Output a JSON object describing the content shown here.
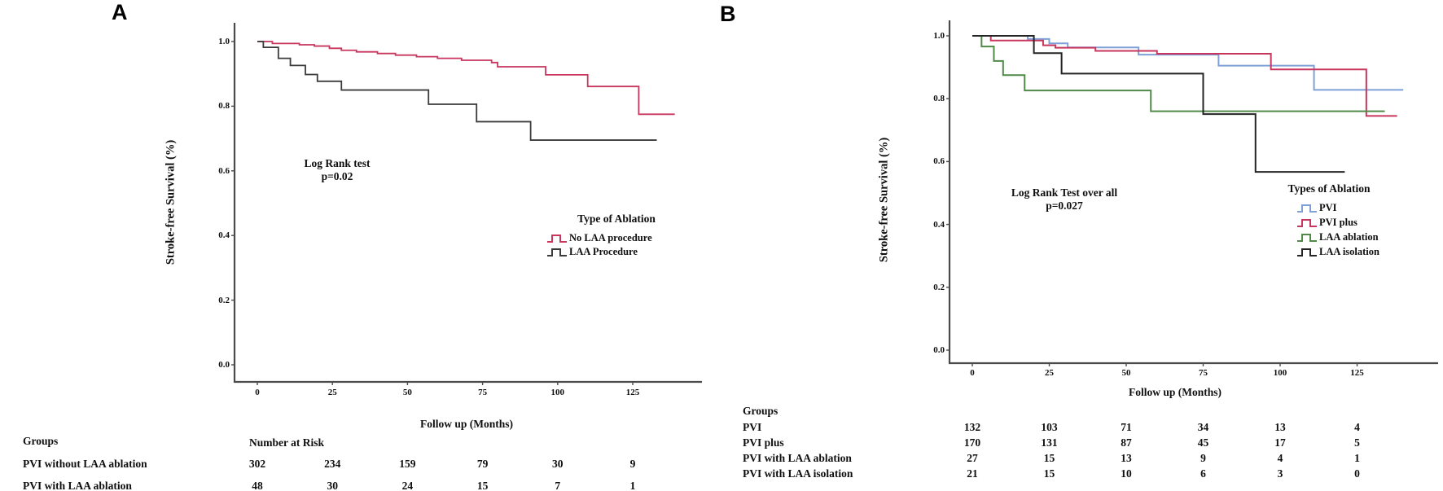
{
  "chart_data": [
    {
      "type": "line",
      "subtype": "kaplan-meier-step",
      "panel_label": "A",
      "ylabel": "Stroke-free Survival (%)",
      "xlabel": "Follow up (Months)",
      "annotation_line1": "Log Rank test",
      "annotation_line2": "p=0.02",
      "legend_title": "Type of Ablation",
      "legend_position": "inside-right",
      "grid": false,
      "xticks": [
        "0",
        "25",
        "50",
        "75",
        "100",
        "125"
      ],
      "xtick_values": [
        0,
        25,
        50,
        75,
        100,
        125
      ],
      "yticks": [
        "1.0",
        "0.8",
        "0.6",
        "0.4",
        "0.2",
        "0.0"
      ],
      "ytick_values": [
        1.0,
        0.8,
        0.6,
        0.4,
        0.2,
        0.0
      ],
      "xlim": [
        0,
        148
      ],
      "ylim": [
        0.0,
        1.05
      ],
      "series": [
        {
          "name": "No LAA procedure",
          "color": "#c8365e",
          "steps": [
            [
              0,
              1.0
            ],
            [
              5,
              0.994
            ],
            [
              14,
              0.99
            ],
            [
              19,
              0.986
            ],
            [
              24,
              0.979
            ],
            [
              28,
              0.973
            ],
            [
              33,
              0.968
            ],
            [
              40,
              0.963
            ],
            [
              46,
              0.958
            ],
            [
              53,
              0.953
            ],
            [
              60,
              0.948
            ],
            [
              68,
              0.942
            ],
            [
              78,
              0.935
            ],
            [
              80,
              0.922
            ],
            [
              96,
              0.897
            ],
            [
              110,
              0.861
            ],
            [
              127,
              0.775
            ]
          ],
          "end_month": 139
        },
        {
          "name": "LAA Procedure",
          "color": "#3b3b3b",
          "steps": [
            [
              0,
              1.0
            ],
            [
              2,
              0.982
            ],
            [
              7,
              0.948
            ],
            [
              11,
              0.926
            ],
            [
              16,
              0.898
            ],
            [
              20,
              0.877
            ],
            [
              28,
              0.85
            ],
            [
              57,
              0.806
            ],
            [
              73,
              0.752
            ],
            [
              91,
              0.695
            ]
          ],
          "end_month": 133
        }
      ],
      "risk_table": {
        "groups_header": "Groups",
        "risk_header": "Number at Risk",
        "rows": [
          {
            "label": "PVI without LAA ablation",
            "counts": [
              "302",
              "234",
              "159",
              "79",
              "30",
              "9"
            ]
          },
          {
            "label": "PVI with LAA ablation",
            "counts": [
              "48",
              "30",
              "24",
              "15",
              "7",
              "1"
            ]
          }
        ]
      }
    },
    {
      "type": "line",
      "subtype": "kaplan-meier-step",
      "panel_label": "B",
      "ylabel": "Stroke-free Survival (%)",
      "xlabel": "Follow up (Months)",
      "annotation_line1": "Log Rank Test over all",
      "annotation_line2": "p=0.027",
      "legend_title": "Types of Ablation",
      "legend_position": "inside-right",
      "grid": false,
      "xticks": [
        "0",
        "25",
        "50",
        "75",
        "100",
        "125"
      ],
      "xtick_values": [
        0,
        25,
        50,
        75,
        100,
        125
      ],
      "yticks": [
        "1.0",
        "0.8",
        "0.6",
        "0.4",
        "0.2",
        "0.0"
      ],
      "ytick_values": [
        1.0,
        0.8,
        0.6,
        0.4,
        0.2,
        0.0
      ],
      "xlim": [
        0,
        150
      ],
      "ylim": [
        0.0,
        1.05
      ],
      "series": [
        {
          "name": "PVI",
          "color": "#7ea0d8",
          "steps": [
            [
              0,
              1.0
            ],
            [
              18,
              0.99
            ],
            [
              25,
              0.976
            ],
            [
              31,
              0.963
            ],
            [
              54,
              0.94
            ],
            [
              80,
              0.905
            ],
            [
              111,
              0.828
            ]
          ],
          "end_month": 140
        },
        {
          "name": "PVI plus",
          "color": "#c8365e",
          "steps": [
            [
              0,
              1.0
            ],
            [
              6,
              0.985
            ],
            [
              23,
              0.97
            ],
            [
              27,
              0.962
            ],
            [
              40,
              0.952
            ],
            [
              60,
              0.943
            ],
            [
              97,
              0.893
            ],
            [
              128,
              0.745
            ]
          ],
          "end_month": 138
        },
        {
          "name": "LAA ablation",
          "color": "#4f8a47",
          "steps": [
            [
              0,
              1.0
            ],
            [
              3,
              0.966
            ],
            [
              7,
              0.92
            ],
            [
              10,
              0.875
            ],
            [
              17,
              0.826
            ],
            [
              58,
              0.76
            ]
          ],
          "end_month": 134
        },
        {
          "name": "LAA isolation",
          "color": "#242424",
          "steps": [
            [
              0,
              1.0
            ],
            [
              20,
              0.945
            ],
            [
              29,
              0.88
            ],
            [
              75,
              0.751
            ],
            [
              92,
              0.567
            ]
          ],
          "end_month": 121
        }
      ],
      "risk_table": {
        "groups_header": "Groups",
        "rows": [
          {
            "label": "PVI",
            "counts": [
              "132",
              "103",
              "71",
              "34",
              "13",
              "4"
            ]
          },
          {
            "label": "PVI plus",
            "counts": [
              "170",
              "131",
              "87",
              "45",
              "17",
              "5"
            ]
          },
          {
            "label": "PVI with LAA ablation",
            "counts": [
              "27",
              "15",
              "13",
              "9",
              "4",
              "1"
            ]
          },
          {
            "label": "PVI with LAA isolation",
            "counts": [
              "21",
              "15",
              "10",
              "6",
              "3",
              "0"
            ]
          }
        ]
      }
    }
  ]
}
